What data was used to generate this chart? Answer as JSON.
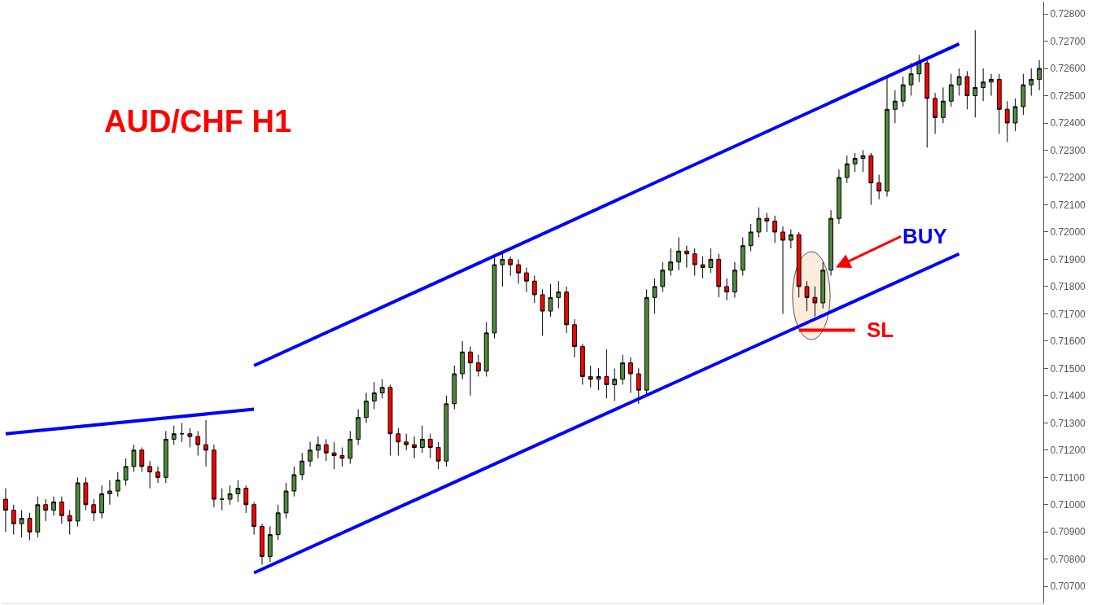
{
  "chart_data": {
    "type": "candlestick",
    "title": "AUD/CHF H1",
    "categories": [
      null,
      null,
      null,
      null,
      null,
      null,
      null,
      null,
      null,
      null,
      null,
      null,
      null,
      null,
      null,
      null,
      null,
      null,
      null,
      null,
      null,
      null,
      null,
      null,
      null,
      null,
      null,
      null,
      null,
      null,
      null,
      null,
      null,
      null,
      null,
      null,
      null,
      null,
      null,
      null,
      null,
      null,
      null,
      null,
      null,
      null,
      null,
      null,
      null,
      null,
      null,
      null,
      null,
      null,
      null,
      null,
      null,
      null,
      null,
      null,
      null,
      null,
      null,
      null,
      null,
      null,
      null,
      null,
      null,
      null,
      null,
      null,
      null,
      null,
      null,
      null,
      null,
      null,
      null,
      null,
      null,
      null,
      null,
      null,
      null,
      null,
      null,
      null,
      null,
      null,
      null,
      null,
      null,
      null,
      null,
      null,
      null,
      null,
      null,
      null,
      null,
      null,
      null,
      null,
      null,
      null,
      null,
      null,
      null,
      null,
      null,
      null,
      null,
      null,
      null,
      null,
      null,
      null,
      null,
      null,
      null,
      null,
      null,
      null,
      null,
      null,
      null,
      null,
      null,
      null
    ],
    "ohlc": [
      [
        0.7102,
        0.7106,
        0.709,
        0.7098
      ],
      [
        0.7098,
        0.71,
        0.7089,
        0.7093
      ],
      [
        0.7093,
        0.7098,
        0.7088,
        0.7095
      ],
      [
        0.7095,
        0.7097,
        0.7087,
        0.709
      ],
      [
        0.709,
        0.7103,
        0.7088,
        0.71
      ],
      [
        0.71,
        0.7102,
        0.7094,
        0.7098
      ],
      [
        0.7098,
        0.7103,
        0.7096,
        0.7101
      ],
      [
        0.7101,
        0.7103,
        0.7093,
        0.7096
      ],
      [
        0.7096,
        0.7098,
        0.7089,
        0.7094
      ],
      [
        0.7094,
        0.711,
        0.7092,
        0.7108
      ],
      [
        0.7108,
        0.711,
        0.7098,
        0.71
      ],
      [
        0.71,
        0.7102,
        0.7094,
        0.7097
      ],
      [
        0.7097,
        0.7107,
        0.7095,
        0.7104
      ],
      [
        0.7104,
        0.7109,
        0.71,
        0.7105
      ],
      [
        0.7105,
        0.7112,
        0.7103,
        0.7109
      ],
      [
        0.7109,
        0.7117,
        0.7107,
        0.7114
      ],
      [
        0.7114,
        0.7122,
        0.7112,
        0.712
      ],
      [
        0.712,
        0.7121,
        0.7112,
        0.7114
      ],
      [
        0.7114,
        0.7116,
        0.7106,
        0.7112
      ],
      [
        0.7112,
        0.7114,
        0.7108,
        0.711
      ],
      [
        0.711,
        0.7127,
        0.7108,
        0.7124
      ],
      [
        0.7124,
        0.7129,
        0.7122,
        0.7126
      ],
      [
        0.7126,
        0.713,
        0.7123,
        0.7126
      ],
      [
        0.7126,
        0.7128,
        0.7121,
        0.7125
      ],
      [
        0.7125,
        0.7127,
        0.7118,
        0.7122
      ],
      [
        0.7122,
        0.7131,
        0.7114,
        0.712
      ],
      [
        0.712,
        0.7122,
        0.7099,
        0.7102
      ],
      [
        0.7102,
        0.7106,
        0.7098,
        0.7102
      ],
      [
        0.7102,
        0.7107,
        0.71,
        0.7104
      ],
      [
        0.7104,
        0.7109,
        0.7101,
        0.7106
      ],
      [
        0.7106,
        0.7107,
        0.7097,
        0.71
      ],
      [
        0.71,
        0.7101,
        0.7089,
        0.7092
      ],
      [
        0.7092,
        0.7093,
        0.7078,
        0.7081
      ],
      [
        0.7081,
        0.7092,
        0.7079,
        0.7089
      ],
      [
        0.7089,
        0.71,
        0.7087,
        0.7097
      ],
      [
        0.7097,
        0.7108,
        0.7095,
        0.7105
      ],
      [
        0.7105,
        0.7114,
        0.7103,
        0.7111
      ],
      [
        0.7111,
        0.7119,
        0.7109,
        0.7116
      ],
      [
        0.7116,
        0.7123,
        0.7114,
        0.712
      ],
      [
        0.712,
        0.7125,
        0.7117,
        0.7122
      ],
      [
        0.7122,
        0.7124,
        0.7116,
        0.7119
      ],
      [
        0.7119,
        0.7123,
        0.7113,
        0.7118
      ],
      [
        0.7118,
        0.7121,
        0.7114,
        0.7117
      ],
      [
        0.7117,
        0.7127,
        0.7115,
        0.7124
      ],
      [
        0.7124,
        0.7135,
        0.7122,
        0.7132
      ],
      [
        0.7132,
        0.7141,
        0.713,
        0.7138
      ],
      [
        0.7138,
        0.7145,
        0.7135,
        0.7141
      ],
      [
        0.7141,
        0.7146,
        0.7139,
        0.7143
      ],
      [
        0.7143,
        0.7144,
        0.7118,
        0.7126
      ],
      [
        0.7126,
        0.7128,
        0.7118,
        0.7123
      ],
      [
        0.7123,
        0.7126,
        0.712,
        0.7122
      ],
      [
        0.7122,
        0.7125,
        0.7117,
        0.7121
      ],
      [
        0.7121,
        0.7129,
        0.7119,
        0.7124
      ],
      [
        0.7124,
        0.7126,
        0.7117,
        0.7121
      ],
      [
        0.7121,
        0.7123,
        0.7113,
        0.7116
      ],
      [
        0.7116,
        0.714,
        0.7114,
        0.7137
      ],
      [
        0.7137,
        0.7151,
        0.7135,
        0.7148
      ],
      [
        0.7148,
        0.716,
        0.7146,
        0.7156
      ],
      [
        0.7156,
        0.7158,
        0.714,
        0.7152
      ],
      [
        0.7152,
        0.7155,
        0.7147,
        0.7149
      ],
      [
        0.7149,
        0.7167,
        0.7147,
        0.7163
      ],
      [
        0.7163,
        0.7191,
        0.7161,
        0.7188
      ],
      [
        0.7188,
        0.7192,
        0.718,
        0.719
      ],
      [
        0.719,
        0.7191,
        0.7184,
        0.7188
      ],
      [
        0.7188,
        0.719,
        0.7181,
        0.7185
      ],
      [
        0.7185,
        0.7187,
        0.7178,
        0.7182
      ],
      [
        0.7182,
        0.7184,
        0.7174,
        0.7177
      ],
      [
        0.7177,
        0.7179,
        0.7162,
        0.7171
      ],
      [
        0.7171,
        0.7181,
        0.7169,
        0.7176
      ],
      [
        0.7176,
        0.7182,
        0.7172,
        0.7178
      ],
      [
        0.7178,
        0.718,
        0.7163,
        0.7166
      ],
      [
        0.7166,
        0.7168,
        0.7154,
        0.7158
      ],
      [
        0.7158,
        0.7159,
        0.7144,
        0.7147
      ],
      [
        0.7147,
        0.7151,
        0.7143,
        0.7146
      ],
      [
        0.7146,
        0.715,
        0.7142,
        0.7147
      ],
      [
        0.7147,
        0.7157,
        0.7139,
        0.7144
      ],
      [
        0.7144,
        0.715,
        0.7138,
        0.7146
      ],
      [
        0.7146,
        0.7155,
        0.7144,
        0.7152
      ],
      [
        0.7152,
        0.7154,
        0.7141,
        0.7148
      ],
      [
        0.7148,
        0.715,
        0.7137,
        0.7142
      ],
      [
        0.7142,
        0.7179,
        0.714,
        0.7176
      ],
      [
        0.7176,
        0.7183,
        0.717,
        0.718
      ],
      [
        0.718,
        0.7189,
        0.7178,
        0.7186
      ],
      [
        0.7186,
        0.7194,
        0.7184,
        0.7189
      ],
      [
        0.7189,
        0.7198,
        0.7186,
        0.7193
      ],
      [
        0.7193,
        0.7195,
        0.7187,
        0.7192
      ],
      [
        0.7192,
        0.7194,
        0.7184,
        0.7188
      ],
      [
        0.7188,
        0.7191,
        0.7183,
        0.7187
      ],
      [
        0.7187,
        0.7194,
        0.7185,
        0.719
      ],
      [
        0.719,
        0.7192,
        0.7176,
        0.718
      ],
      [
        0.718,
        0.7183,
        0.7175,
        0.7178
      ],
      [
        0.7178,
        0.7189,
        0.7176,
        0.7186
      ],
      [
        0.7186,
        0.7198,
        0.7184,
        0.7195
      ],
      [
        0.7195,
        0.7203,
        0.7193,
        0.72
      ],
      [
        0.72,
        0.7209,
        0.7198,
        0.7205
      ],
      [
        0.7205,
        0.7207,
        0.72,
        0.7204
      ],
      [
        0.7204,
        0.7206,
        0.7196,
        0.72
      ],
      [
        0.72,
        0.7202,
        0.717,
        0.7197
      ],
      [
        0.7197,
        0.7201,
        0.7194,
        0.7199
      ],
      [
        0.7199,
        0.72,
        0.7176,
        0.718
      ],
      [
        0.718,
        0.7182,
        0.7171,
        0.7176
      ],
      [
        0.7176,
        0.718,
        0.7169,
        0.7174
      ],
      [
        0.7174,
        0.7189,
        0.7172,
        0.7186
      ],
      [
        0.7186,
        0.7208,
        0.7184,
        0.7205
      ],
      [
        0.7205,
        0.7223,
        0.7203,
        0.722
      ],
      [
        0.722,
        0.7228,
        0.7218,
        0.7225
      ],
      [
        0.7225,
        0.7229,
        0.7222,
        0.7227
      ],
      [
        0.7227,
        0.723,
        0.7222,
        0.7228
      ],
      [
        0.7228,
        0.7229,
        0.721,
        0.7218
      ],
      [
        0.7218,
        0.7221,
        0.7212,
        0.7215
      ],
      [
        0.7215,
        0.7257,
        0.7213,
        0.7245
      ],
      [
        0.7245,
        0.7252,
        0.724,
        0.7248
      ],
      [
        0.7248,
        0.7257,
        0.7246,
        0.7254
      ],
      [
        0.7254,
        0.7262,
        0.725,
        0.7258
      ],
      [
        0.7258,
        0.7265,
        0.7255,
        0.7262
      ],
      [
        0.7262,
        0.7264,
        0.7231,
        0.7249
      ],
      [
        0.7249,
        0.7251,
        0.7236,
        0.7242
      ],
      [
        0.7242,
        0.7253,
        0.724,
        0.7248
      ],
      [
        0.7248,
        0.7258,
        0.7246,
        0.7254
      ],
      [
        0.7254,
        0.726,
        0.725,
        0.7257
      ],
      [
        0.7257,
        0.7259,
        0.7245,
        0.725
      ],
      [
        0.725,
        0.7274,
        0.7242,
        0.7253
      ],
      [
        0.7253,
        0.726,
        0.7248,
        0.7255
      ],
      [
        0.7255,
        0.7258,
        0.725,
        0.7256
      ],
      [
        0.7256,
        0.7258,
        0.7236,
        0.7245
      ],
      [
        0.7245,
        0.7248,
        0.7233,
        0.724
      ],
      [
        0.724,
        0.7249,
        0.7237,
        0.7246
      ],
      [
        0.7246,
        0.7258,
        0.7243,
        0.7254
      ],
      [
        0.7254,
        0.726,
        0.725,
        0.7256
      ],
      [
        0.7256,
        0.7263,
        0.7252,
        0.726
      ]
    ],
    "series": [
      {
        "type": "line",
        "color": "#0000ff",
        "values": [
          0.7126,
          null,
          null,
          null,
          null,
          null,
          null,
          null,
          null,
          null,
          null,
          null,
          null,
          null,
          null,
          null,
          null,
          null,
          null,
          null,
          null,
          null,
          null,
          null,
          null,
          null,
          null,
          null,
          null,
          null,
          null,
          0.7135,
          null,
          null,
          null,
          null,
          null,
          null,
          null,
          null,
          null,
          null,
          null,
          null,
          null,
          null,
          null,
          null,
          null,
          null,
          null,
          null,
          null,
          null,
          null,
          null,
          null,
          null,
          null,
          null,
          null,
          null,
          null,
          null,
          null,
          null,
          null,
          null,
          null,
          null,
          null,
          null,
          null,
          null,
          null,
          null,
          null,
          null,
          null,
          null,
          null,
          null,
          null,
          null,
          null,
          null,
          null,
          null,
          null,
          null,
          null,
          null,
          null,
          null,
          null,
          null,
          null,
          null,
          null,
          null,
          null,
          null,
          null,
          null,
          null,
          null,
          null,
          null,
          null,
          null,
          null,
          null,
          null,
          null,
          null,
          null,
          null,
          null,
          null,
          null,
          null,
          null,
          null,
          null,
          null,
          null,
          null,
          null,
          null,
          null
        ]
      },
      {
        "type": "line",
        "color": "#0000ff",
        "values": [
          null,
          null,
          null,
          null,
          null,
          null,
          null,
          null,
          null,
          null,
          null,
          null,
          null,
          null,
          null,
          null,
          null,
          null,
          null,
          null,
          null,
          null,
          null,
          null,
          null,
          null,
          null,
          null,
          null,
          null,
          null,
          0.7151,
          null,
          null,
          null,
          null,
          null,
          null,
          null,
          null,
          null,
          null,
          null,
          null,
          null,
          null,
          null,
          null,
          null,
          null,
          null,
          null,
          null,
          null,
          null,
          null,
          null,
          null,
          null,
          null,
          null,
          null,
          null,
          null,
          null,
          null,
          null,
          null,
          null,
          null,
          null,
          null,
          null,
          null,
          null,
          null,
          null,
          null,
          null,
          null,
          null,
          null,
          null,
          null,
          null,
          null,
          null,
          null,
          null,
          null,
          null,
          null,
          null,
          null,
          null,
          null,
          null,
          null,
          null,
          null,
          null,
          null,
          null,
          null,
          null,
          null,
          null,
          null,
          null,
          null,
          null,
          null,
          null,
          null,
          null,
          null,
          null,
          null,
          null,
          0.7269,
          null,
          null,
          null,
          null,
          null,
          null,
          null,
          null,
          null,
          null
        ]
      },
      {
        "type": "line",
        "color": "#0000ff",
        "values": [
          null,
          null,
          null,
          null,
          null,
          null,
          null,
          null,
          null,
          null,
          null,
          null,
          null,
          null,
          null,
          null,
          null,
          null,
          null,
          null,
          null,
          null,
          null,
          null,
          null,
          null,
          null,
          null,
          null,
          null,
          null,
          0.7075,
          null,
          null,
          null,
          null,
          null,
          null,
          null,
          null,
          null,
          null,
          null,
          null,
          null,
          null,
          null,
          null,
          null,
          null,
          null,
          null,
          null,
          null,
          null,
          null,
          null,
          null,
          null,
          null,
          null,
          null,
          null,
          null,
          null,
          null,
          null,
          null,
          null,
          null,
          null,
          null,
          null,
          null,
          null,
          null,
          null,
          null,
          null,
          null,
          null,
          null,
          null,
          null,
          null,
          null,
          null,
          null,
          null,
          null,
          null,
          null,
          null,
          null,
          null,
          null,
          null,
          null,
          null,
          null,
          null,
          null,
          null,
          null,
          null,
          null,
          null,
          null,
          null,
          null,
          null,
          null,
          null,
          null,
          null,
          null,
          null,
          null,
          null,
          0.7192,
          null,
          null,
          null,
          null,
          null,
          null,
          null,
          null,
          null,
          null
        ]
      },
      {
        "type": "line",
        "color": "#ff0000",
        "values": [
          null,
          null,
          null,
          null,
          null,
          null,
          null,
          null,
          null,
          null,
          null,
          null,
          null,
          null,
          null,
          null,
          null,
          null,
          null,
          null,
          null,
          null,
          null,
          null,
          null,
          null,
          null,
          null,
          null,
          null,
          null,
          null,
          null,
          null,
          null,
          null,
          null,
          null,
          null,
          null,
          null,
          null,
          null,
          null,
          null,
          null,
          null,
          null,
          null,
          null,
          null,
          null,
          null,
          null,
          null,
          null,
          null,
          null,
          null,
          null,
          null,
          null,
          null,
          null,
          null,
          null,
          null,
          null,
          null,
          null,
          null,
          null,
          null,
          null,
          null,
          null,
          null,
          null,
          null,
          null,
          null,
          null,
          null,
          null,
          null,
          null,
          null,
          null,
          null,
          null,
          null,
          null,
          null,
          null,
          null,
          null,
          null,
          null,
          null,
          0.7164,
          null,
          null,
          null,
          null,
          null,
          null,
          0.7164,
          null,
          null,
          null,
          null,
          null,
          null,
          null,
          null,
          null,
          null,
          null,
          null,
          null,
          null,
          null,
          null,
          null,
          null,
          null,
          null,
          null,
          null,
          null
        ]
      }
    ],
    "annotations": [
      "BUY",
      "SL"
    ],
    "ylim": [
      0.70638,
      0.72845
    ],
    "yticks": [
      {
        "value": 0.707,
        "label": "0.70700"
      },
      {
        "value": 0.708,
        "label": "0.70800"
      },
      {
        "value": 0.709,
        "label": "0.70900"
      },
      {
        "value": 0.71,
        "label": "0.71000"
      },
      {
        "value": 0.711,
        "label": "0.71100"
      },
      {
        "value": 0.712,
        "label": "0.71200"
      },
      {
        "value": 0.713,
        "label": "0.71300"
      },
      {
        "value": 0.714,
        "label": "0.71400"
      },
      {
        "value": 0.715,
        "label": "0.71500"
      },
      {
        "value": 0.716,
        "label": "0.71600"
      },
      {
        "value": 0.717,
        "label": "0.71700"
      },
      {
        "value": 0.718,
        "label": "0.71800"
      },
      {
        "value": 0.719,
        "label": "0.71900"
      },
      {
        "value": 0.72,
        "label": "0.72000"
      },
      {
        "value": 0.721,
        "label": "0.72100"
      },
      {
        "value": 0.722,
        "label": "0.72200"
      },
      {
        "value": 0.723,
        "label": "0.72300"
      },
      {
        "value": 0.724,
        "label": "0.72400"
      },
      {
        "value": 0.725,
        "label": "0.72500"
      },
      {
        "value": 0.726,
        "label": "0.72600"
      },
      {
        "value": 0.727,
        "label": "0.72700"
      },
      {
        "value": 0.728,
        "label": "0.72800"
      }
    ],
    "tick_labels": "y",
    "grid": false
  }
}
